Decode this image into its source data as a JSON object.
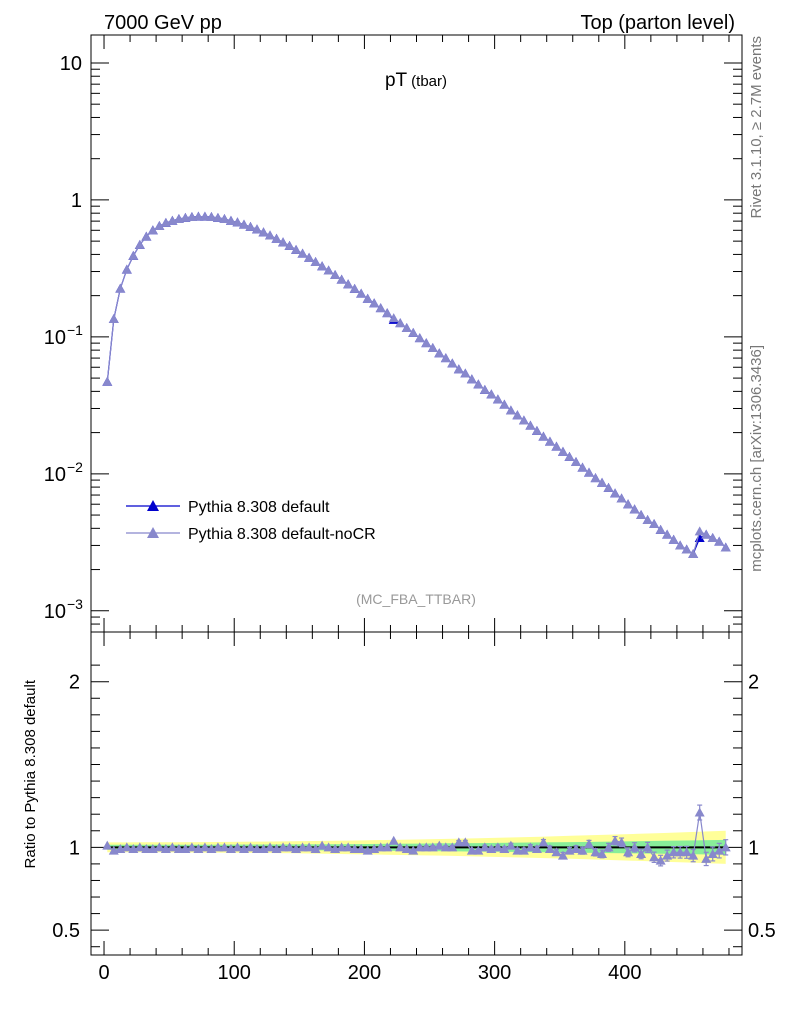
{
  "header": {
    "left": "7000 GeV pp",
    "right": "Top (parton level)"
  },
  "side_labels": {
    "version": "Rivet 3.1.10, ≥ 2.7M events",
    "source": "mcplots.cern.ch [arXiv:1306.3436]"
  },
  "chart_data": [
    {
      "type": "line",
      "title": "pT",
      "title_suffix": "(tbar)",
      "watermark": "(MC_FBA_TTBAR)",
      "xlabel": "",
      "ylabel": "",
      "yscale": "log",
      "xlim": [
        -10,
        490
      ],
      "ylim": [
        0.0007,
        16
      ],
      "y_ticks": [
        {
          "value": 10,
          "label": "10"
        },
        {
          "value": 1,
          "label": "1"
        },
        {
          "value": 0.1,
          "label": "10",
          "exp": "−1"
        },
        {
          "value": 0.01,
          "label": "10",
          "exp": "−2"
        },
        {
          "value": 0.001,
          "label": "10",
          "exp": "−3"
        }
      ],
      "legend": {
        "position": "lower-left"
      },
      "x": [
        2.5,
        7.5,
        12.5,
        17.5,
        22.5,
        27.5,
        32.5,
        37.5,
        42.5,
        47.5,
        52.5,
        57.5,
        62.5,
        67.5,
        72.5,
        77.5,
        82.5,
        87.5,
        92.5,
        97.5,
        102.5,
        107.5,
        112.5,
        117.5,
        122.5,
        127.5,
        132.5,
        137.5,
        142.5,
        147.5,
        152.5,
        157.5,
        162.5,
        167.5,
        172.5,
        177.5,
        182.5,
        187.5,
        192.5,
        197.5,
        202.5,
        207.5,
        212.5,
        217.5,
        222.5,
        227.5,
        232.5,
        237.5,
        242.5,
        247.5,
        252.5,
        257.5,
        262.5,
        267.5,
        272.5,
        277.5,
        282.5,
        287.5,
        292.5,
        297.5,
        302.5,
        307.5,
        312.5,
        317.5,
        322.5,
        327.5,
        332.5,
        337.5,
        342.5,
        347.5,
        352.5,
        357.5,
        362.5,
        367.5,
        372.5,
        377.5,
        382.5,
        387.5,
        392.5,
        397.5,
        402.5,
        407.5,
        412.5,
        417.5,
        422.5,
        427.5,
        432.5,
        437.5,
        442.5,
        447.5,
        452.5,
        457.5,
        462.5,
        467.5,
        472.5,
        477.5
      ],
      "series": [
        {
          "name": "Pythia 8.308 default",
          "color": "#0000cc",
          "values": [
            0.047,
            0.135,
            0.225,
            0.31,
            0.39,
            0.47,
            0.54,
            0.6,
            0.645,
            0.68,
            0.705,
            0.725,
            0.74,
            0.75,
            0.755,
            0.755,
            0.75,
            0.74,
            0.725,
            0.705,
            0.685,
            0.66,
            0.635,
            0.61,
            0.58,
            0.55,
            0.52,
            0.49,
            0.462,
            0.432,
            0.405,
            0.378,
            0.352,
            0.328,
            0.305,
            0.283,
            0.262,
            0.242,
            0.224,
            0.207,
            0.19,
            0.176,
            0.162,
            0.149,
            0.133,
            0.126,
            0.116,
            0.107,
            0.098,
            0.09,
            0.083,
            0.076,
            0.07,
            0.064,
            0.058,
            0.054,
            0.049,
            0.045,
            0.041,
            0.038,
            0.035,
            0.032,
            0.029,
            0.0268,
            0.0245,
            0.0225,
            0.0206,
            0.0187,
            0.0172,
            0.0158,
            0.0145,
            0.0133,
            0.0122,
            0.0111,
            0.0102,
            0.0093,
            0.0086,
            0.0079,
            0.0072,
            0.0066,
            0.006,
            0.0055,
            0.005,
            0.0046,
            0.0043,
            0.0039,
            0.0036,
            0.0033,
            0.003,
            0.0028,
            0.0026,
            0.0034,
            0.0036,
            0.0034,
            0.0032,
            0.0029
          ]
        },
        {
          "name": "Pythia 8.308 default-noCR",
          "color": "#8888cc",
          "values": [
            0.047,
            0.135,
            0.225,
            0.31,
            0.39,
            0.47,
            0.54,
            0.6,
            0.645,
            0.68,
            0.705,
            0.725,
            0.74,
            0.75,
            0.755,
            0.755,
            0.75,
            0.74,
            0.725,
            0.705,
            0.685,
            0.66,
            0.635,
            0.61,
            0.58,
            0.55,
            0.52,
            0.49,
            0.462,
            0.432,
            0.405,
            0.378,
            0.352,
            0.328,
            0.305,
            0.283,
            0.262,
            0.242,
            0.224,
            0.207,
            0.19,
            0.176,
            0.162,
            0.149,
            0.137,
            0.126,
            0.116,
            0.107,
            0.098,
            0.09,
            0.083,
            0.076,
            0.07,
            0.064,
            0.058,
            0.054,
            0.049,
            0.045,
            0.041,
            0.038,
            0.035,
            0.032,
            0.029,
            0.0268,
            0.0245,
            0.0225,
            0.0206,
            0.0187,
            0.0172,
            0.0158,
            0.0145,
            0.0133,
            0.0122,
            0.0111,
            0.0102,
            0.0093,
            0.0086,
            0.0079,
            0.0072,
            0.0066,
            0.006,
            0.0055,
            0.005,
            0.0046,
            0.0043,
            0.0039,
            0.0036,
            0.0033,
            0.003,
            0.0028,
            0.0026,
            0.0038,
            0.0036,
            0.0034,
            0.0032,
            0.0029
          ]
        }
      ]
    },
    {
      "type": "line",
      "title": "",
      "xlabel": "",
      "ylabel": "Ratio to Pythia 8.308 default",
      "yscale": "linear",
      "xlim": [
        -10,
        490
      ],
      "ylim": [
        0.35,
        2.3
      ],
      "y_ticks": [
        {
          "value": 2,
          "label": "2"
        },
        {
          "value": 1,
          "label": "1"
        },
        {
          "value": 0.5,
          "label": "0.5"
        }
      ],
      "x_ticks": [
        {
          "value": 0,
          "label": "0"
        },
        {
          "value": 100,
          "label": "100"
        },
        {
          "value": 200,
          "label": "200"
        },
        {
          "value": 300,
          "label": "300"
        },
        {
          "value": 400,
          "label": "400"
        }
      ],
      "reference_line": 1,
      "bands": [
        {
          "name": "yellow",
          "color": "#ffff99",
          "half_width_start": 0.03,
          "half_width_end": 0.1
        },
        {
          "name": "green",
          "color": "#88ee99",
          "half_width_start": 0.015,
          "half_width_end": 0.045
        }
      ],
      "series": [
        {
          "name": "Pythia 8.308 default-noCR",
          "color": "#8888cc",
          "values": [
            1.01,
            0.98,
            0.99,
            1.0,
            0.99,
            1.0,
            0.99,
            0.99,
            1.0,
            0.99,
            1.0,
            0.99,
            0.99,
            1.0,
            0.99,
            1.0,
            0.99,
            1.0,
            1.0,
            0.99,
            1.0,
            0.99,
            1.0,
            0.99,
            0.99,
            1.0,
            0.99,
            1.0,
            1.0,
            0.99,
            1.0,
            1.0,
            0.99,
            1.01,
            1.0,
            0.99,
            1.0,
            1.0,
            0.99,
            0.99,
            0.98,
            0.99,
            1.0,
            1.0,
            1.04,
            1.0,
            0.99,
            0.98,
            1.0,
            1.0,
            1.0,
            1.01,
            1.0,
            1.0,
            1.03,
            1.03,
            0.98,
            0.98,
            1.0,
            0.99,
            1.0,
            0.99,
            1.01,
            0.98,
            0.98,
            1.0,
            0.99,
            1.03,
            0.99,
            0.97,
            0.95,
            0.98,
            0.99,
            0.98,
            1.02,
            0.97,
            0.96,
            1.0,
            1.04,
            1.03,
            0.97,
            1.0,
            0.96,
            1.0,
            0.94,
            0.92,
            0.95,
            0.97,
            0.97,
            0.97,
            0.95,
            1.21,
            0.93,
            0.96,
            0.98,
            1.0
          ],
          "errors": [
            0.004,
            0.004,
            0.004,
            0.004,
            0.004,
            0.004,
            0.004,
            0.004,
            0.004,
            0.004,
            0.004,
            0.004,
            0.004,
            0.004,
            0.004,
            0.004,
            0.004,
            0.004,
            0.004,
            0.004,
            0.004,
            0.004,
            0.004,
            0.004,
            0.004,
            0.004,
            0.004,
            0.004,
            0.004,
            0.004,
            0.005,
            0.005,
            0.005,
            0.005,
            0.005,
            0.005,
            0.006,
            0.006,
            0.006,
            0.006,
            0.007,
            0.007,
            0.007,
            0.007,
            0.008,
            0.008,
            0.008,
            0.009,
            0.009,
            0.009,
            0.01,
            0.01,
            0.01,
            0.011,
            0.011,
            0.012,
            0.012,
            0.012,
            0.013,
            0.013,
            0.014,
            0.014,
            0.015,
            0.015,
            0.016,
            0.016,
            0.017,
            0.017,
            0.018,
            0.018,
            0.019,
            0.02,
            0.02,
            0.021,
            0.022,
            0.022,
            0.023,
            0.024,
            0.025,
            0.026,
            0.027,
            0.028,
            0.029,
            0.03,
            0.031,
            0.032,
            0.033,
            0.034,
            0.035,
            0.036,
            0.037,
            0.045,
            0.04,
            0.042,
            0.044,
            0.046
          ]
        }
      ]
    }
  ]
}
